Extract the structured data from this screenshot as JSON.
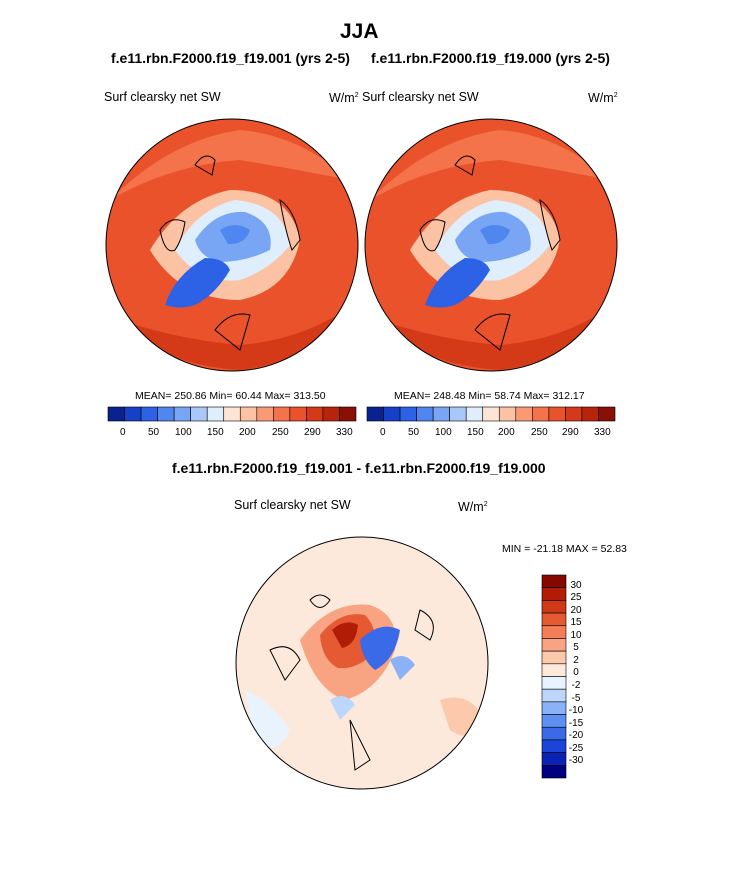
{
  "page_title": "JJA",
  "panel_left": {
    "case_title": "f.e11.rbn.F2000.f19_f19.001 (yrs 2-5)",
    "field_label": "Surf clearsky net SW",
    "units": "W/m",
    "units_sup": "2",
    "stats": "MEAN= 250.86  Min=  60.44  Max= 313.50"
  },
  "panel_right": {
    "case_title": "f.e11.rbn.F2000.f19_f19.000 (yrs 2-5)",
    "field_label": "Surf clearsky net SW",
    "units": "W/m",
    "units_sup": "2",
    "stats": "MEAN= 248.48  Min=  58.74  Max= 312.17"
  },
  "panel_diff": {
    "case_title": "f.e11.rbn.F2000.f19_f19.001 - f.e11.rbn.F2000.f19_f19.000",
    "field_label": "Surf clearsky net SW",
    "units": "W/m",
    "units_sup": "2",
    "stats": "MIN = -21.18 MAX =  52.83"
  },
  "colors": {
    "field_scale": [
      "#08238f",
      "#1740c8",
      "#2d62e6",
      "#4f86f0",
      "#78a6f4",
      "#a9c8f8",
      "#dfeefd",
      "#fde4d6",
      "#fbc2a4",
      "#f99a74",
      "#f4734a",
      "#e9522b",
      "#d43a17",
      "#b8240b",
      "#8a0f04"
    ],
    "diff_scale": [
      "#00007f",
      "#0a22b5",
      "#1c44d8",
      "#3a6ae8",
      "#5f8ff0",
      "#8bb2f6",
      "#bdd6fb",
      "#e9f3fe",
      "#fde8dc",
      "#fcc9ad",
      "#f8a382",
      "#f27d57",
      "#e55a33",
      "#d03817",
      "#b01c06",
      "#860600"
    ],
    "coast": "#000000"
  },
  "chart_data": [
    {
      "type": "heatmap",
      "title": "Surf clearsky net SW",
      "subtitle": "f.e11.rbn.F2000.f19_f19.001 (yrs 2-5)",
      "units": "W/m2",
      "mean": 250.86,
      "min": 60.44,
      "max": 313.5,
      "colorbar_ticks": [
        "0",
        "50",
        "100",
        "150",
        "200",
        "250",
        "290",
        "330"
      ]
    },
    {
      "type": "heatmap",
      "title": "Surf clearsky net SW",
      "subtitle": "f.e11.rbn.F2000.f19_f19.000 (yrs 2-5)",
      "units": "W/m2",
      "mean": 248.48,
      "min": 58.74,
      "max": 312.17,
      "colorbar_ticks": [
        "0",
        "50",
        "100",
        "150",
        "200",
        "250",
        "290",
        "330"
      ]
    },
    {
      "type": "heatmap",
      "title": "Surf clearsky net SW",
      "subtitle": "f.e11.rbn.F2000.f19_f19.001 - f.e11.rbn.F2000.f19_f19.000",
      "units": "W/m2",
      "min": -21.18,
      "max": 52.83,
      "colorbar_ticks": [
        "30",
        "25",
        "20",
        "15",
        "10",
        "5",
        "2",
        "0",
        "-2",
        "-5",
        "-10",
        "-15",
        "-20",
        "-25",
        "-30"
      ]
    }
  ]
}
